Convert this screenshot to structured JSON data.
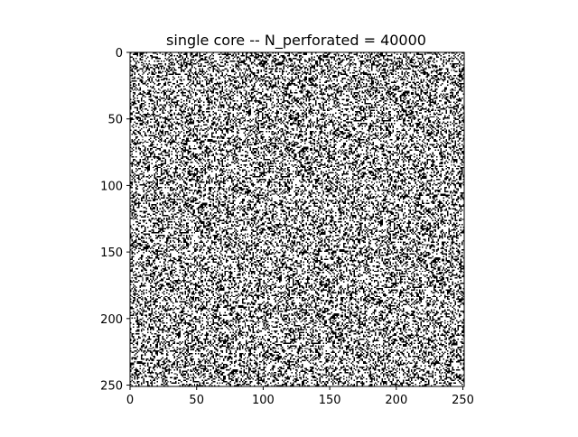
{
  "chart_data": {
    "type": "heatmap",
    "title": "single core -- N_perforated = 40000",
    "xlabel": "",
    "ylabel": "",
    "grid_size": 251,
    "xlim": [
      0,
      251
    ],
    "ylim": [
      251,
      0
    ],
    "x_ticks": [
      "0",
      "50",
      "100",
      "150",
      "200",
      "250"
    ],
    "y_ticks": [
      "0",
      "50",
      "100",
      "150",
      "200",
      "250"
    ],
    "colormap": [
      "#000000",
      "#ffffff"
    ],
    "perforated_cells": 40000,
    "grid": false
  }
}
